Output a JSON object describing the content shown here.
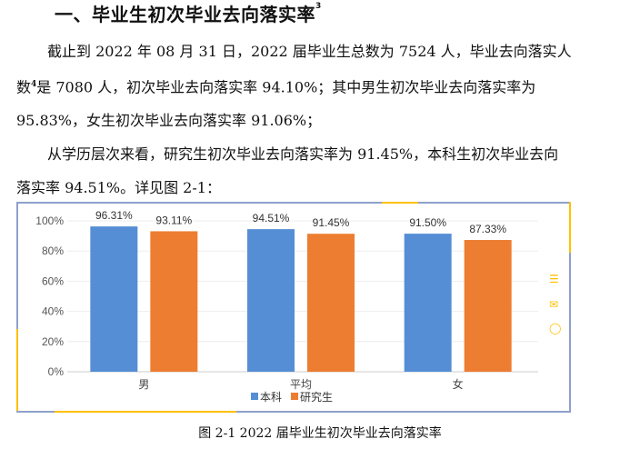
{
  "heading": {
    "text": "一、毕业生初次毕业去向落实率",
    "footnote": "3"
  },
  "paragraph": {
    "lines": [
      "截止到 2022 年 08 月 31 日，2022 届毕业生总数为 7524 人，毕业去向落实人",
      "是 7080 人，初次毕业去向落实率 94.10%；其中男生初次毕业去向落实率为",
      "95.83%，女生初次毕业去向落实率 91.06%；",
      "从学历层次来看，研究生初次毕业去向落实率为 91.45%，本科生初次毕业去向",
      "落实率 94.51%。详见图 2-1："
    ],
    "line2_prefix": "数",
    "line2_footnote": "4"
  },
  "chart_data": {
    "type": "bar",
    "categories": [
      "男",
      "平均",
      "女"
    ],
    "series": [
      {
        "name": "本科",
        "color": "#558ed5",
        "values": [
          96.31,
          94.51,
          91.5
        ],
        "labels": [
          "96.31%",
          "94.51%",
          "91.50%"
        ]
      },
      {
        "name": "研究生",
        "color": "#ed7d31",
        "values": [
          93.11,
          91.45,
          87.33
        ],
        "labels": [
          "93.11%",
          "91.45%",
          "87.33%"
        ]
      }
    ],
    "yticks": [
      "0%",
      "20%",
      "40%",
      "60%",
      "80%",
      "100%"
    ],
    "ylim": [
      0,
      100
    ],
    "grid": true,
    "legend": "bottom"
  },
  "side_icons": [
    "menu-icon",
    "mail-icon",
    "comment-icon"
  ],
  "caption": "图 2-1 2022 届毕业生初次毕业去向落实率"
}
